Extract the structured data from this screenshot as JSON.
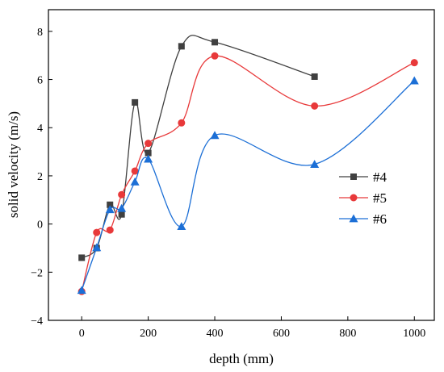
{
  "chart_data": {
    "type": "line",
    "title": "",
    "xlabel": "depth (mm)",
    "ylabel": "solid velocity (m/s)",
    "xlim": [
      -100,
      1060
    ],
    "ylim": [
      -4,
      8.9
    ],
    "x_ticks": [
      0,
      200,
      400,
      600,
      800,
      1000
    ],
    "x_tick_labels": [
      "0",
      "200",
      "400",
      "600",
      "800",
      "1000"
    ],
    "y_ticks": [
      -4,
      -2,
      0,
      2,
      4,
      6,
      8
    ],
    "y_tick_labels": [
      "−4",
      "−2",
      "0",
      "2",
      "4",
      "6",
      "8"
    ],
    "grid": false,
    "legend_position": "right",
    "curve": "smooth",
    "series": [
      {
        "name": "#4",
        "marker": "square",
        "color": "#404040",
        "x": [
          0,
          45,
          85,
          120,
          160,
          200,
          300,
          400,
          700
        ],
        "y": [
          -1.4,
          -1.0,
          0.8,
          0.4,
          5.05,
          2.95,
          7.38,
          7.55,
          6.12
        ]
      },
      {
        "name": "#5",
        "marker": "circle",
        "color": "#e8393a",
        "x": [
          0,
          45,
          85,
          120,
          160,
          200,
          300,
          400,
          700,
          1000
        ],
        "y": [
          -2.8,
          -0.35,
          -0.25,
          1.22,
          2.2,
          3.35,
          4.2,
          6.98,
          4.9,
          6.7
        ]
      },
      {
        "name": "#6",
        "marker": "triangle",
        "color": "#1c6fd6",
        "x": [
          0,
          45,
          85,
          120,
          160,
          200,
          300,
          400,
          700,
          1000
        ],
        "y": [
          -2.75,
          -0.98,
          0.6,
          0.65,
          1.75,
          2.7,
          -0.1,
          3.68,
          2.48,
          5.95
        ]
      }
    ]
  }
}
